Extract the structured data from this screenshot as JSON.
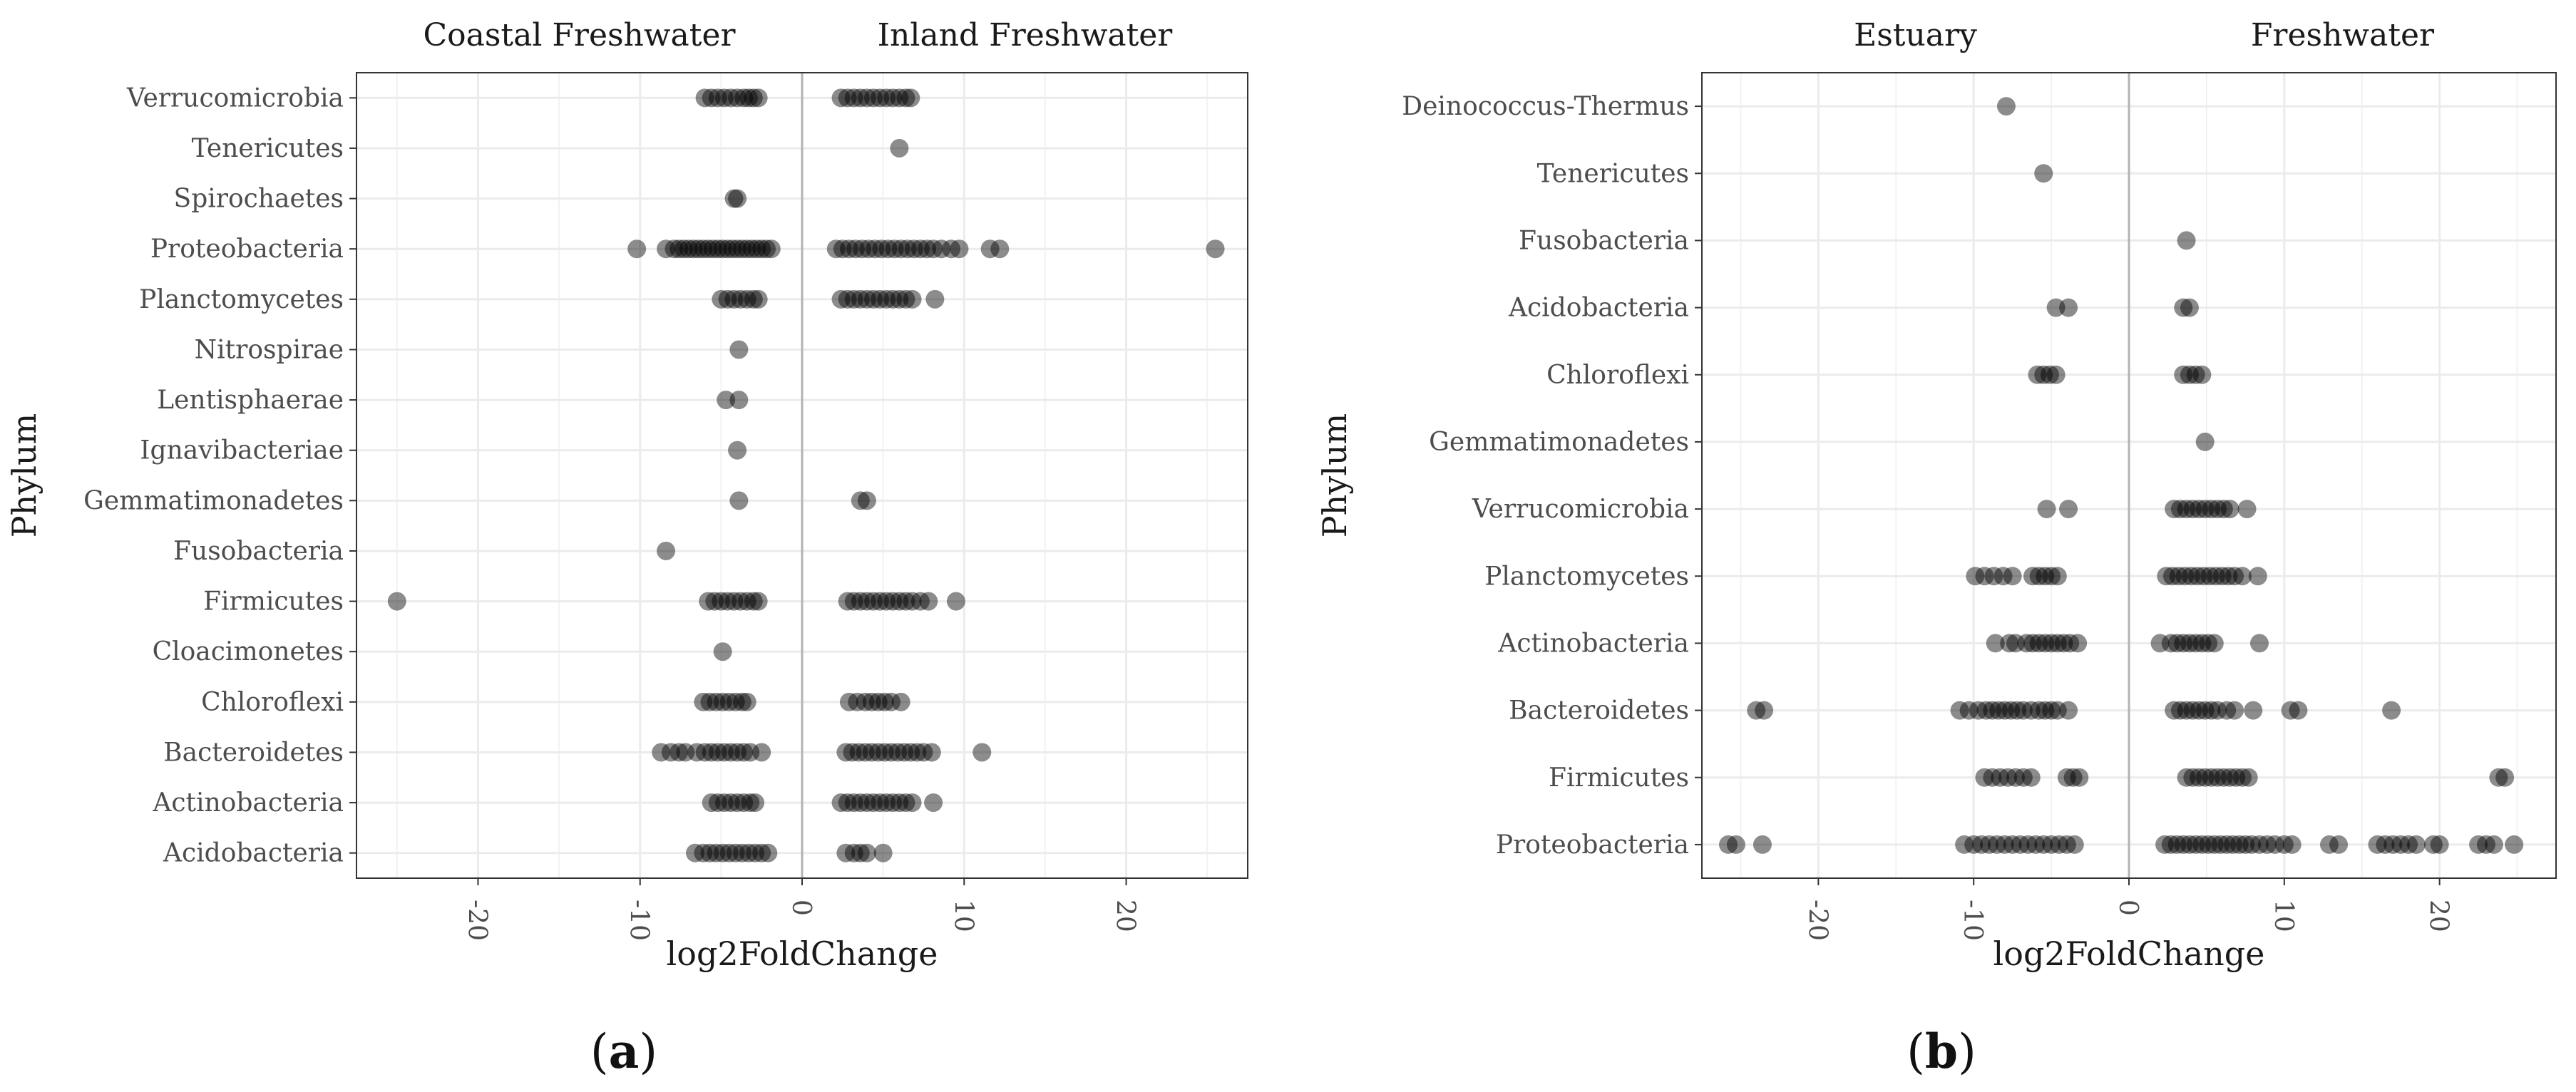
{
  "chart_data": [
    {
      "type": "scatter",
      "panel_label_open": "(",
      "panel_label_letter": "a",
      "panel_label_close": ")",
      "facets": [
        "Coastal Freshwater",
        "Inland Freshwater"
      ],
      "xlabel": "log2FoldChange",
      "ylabel": "Phylum",
      "xlim": [
        -27.5,
        27.5
      ],
      "xticks": [
        -20,
        -10,
        0,
        10,
        20
      ],
      "grid": true,
      "point_color": "#000000",
      "point_alpha": 0.45,
      "categories": [
        "Acidobacteria",
        "Actinobacteria",
        "Bacteroidetes",
        "Chloroflexi",
        "Cloacimonetes",
        "Firmicutes",
        "Fusobacteria",
        "Gemmatimonadetes",
        "Ignavibacteriae",
        "Lentisphaerae",
        "Nitrospirae",
        "Planctomycetes",
        "Proteobacteria",
        "Spirochaetes",
        "Tenericutes",
        "Verrucomicrobia"
      ],
      "series": [
        {
          "name": "Coastal Freshwater",
          "points": [
            {
              "y": "Verrucomicrobia",
              "x": [
                -6,
                -5.6,
                -5.2,
                -4.8,
                -4.4,
                -4,
                -3.6,
                -3.3,
                -3,
                -2.7
              ]
            },
            {
              "y": "Spirochaetes",
              "x": [
                -4.2,
                -4
              ]
            },
            {
              "y": "Proteobacteria",
              "x": [
                -10.2,
                -8.4,
                -7.9,
                -7.6,
                -7.3,
                -7,
                -6.7,
                -6.4,
                -6.1,
                -5.8,
                -5.5,
                -5.2,
                -4.9,
                -4.6,
                -4.3,
                -4,
                -3.7,
                -3.4,
                -3.1,
                -2.8,
                -2.5,
                -2.2,
                -1.9
              ]
            },
            {
              "y": "Planctomycetes",
              "x": [
                -5,
                -4.6,
                -4.2,
                -3.8,
                -3.4,
                -3,
                -2.7
              ]
            },
            {
              "y": "Nitrospirae",
              "x": [
                -3.9
              ]
            },
            {
              "y": "Lentisphaerae",
              "x": [
                -4.7,
                -3.9
              ]
            },
            {
              "y": "Ignavibacteriae",
              "x": [
                -4
              ]
            },
            {
              "y": "Gemmatimonadetes",
              "x": [
                -3.9
              ]
            },
            {
              "y": "Fusobacteria",
              "x": [
                -8.4
              ]
            },
            {
              "y": "Firmicutes",
              "x": [
                -25,
                -5.8,
                -5.4,
                -5,
                -4.6,
                -4.2,
                -3.8,
                -3.4,
                -3,
                -2.7
              ]
            },
            {
              "y": "Cloacimonetes",
              "x": [
                -4.9
              ]
            },
            {
              "y": "Chloroflexi",
              "x": [
                -6.1,
                -5.7,
                -5.3,
                -4.9,
                -4.5,
                -4.1,
                -3.7,
                -3.4
              ]
            },
            {
              "y": "Bacteroidetes",
              "x": [
                -8.7,
                -8.1,
                -7.6,
                -7.2,
                -6.5,
                -6,
                -5.6,
                -5.2,
                -4.8,
                -4.4,
                -4,
                -3.6,
                -3.2,
                -2.5
              ]
            },
            {
              "y": "Actinobacteria",
              "x": [
                -5.6,
                -5.2,
                -4.8,
                -4.4,
                -4,
                -3.6,
                -3.2,
                -2.9
              ]
            },
            {
              "y": "Acidobacteria",
              "x": [
                -6.6,
                -6.1,
                -5.7,
                -5.3,
                -4.9,
                -4.5,
                -4.1,
                -3.7,
                -3.3,
                -2.9,
                -2.5,
                -2.1
              ]
            }
          ]
        },
        {
          "name": "Inland Freshwater",
          "points": [
            {
              "y": "Verrucomicrobia",
              "x": [
                2.4,
                2.8,
                3.2,
                3.6,
                4,
                4.4,
                4.8,
                5.2,
                5.6,
                6,
                6.4,
                6.7
              ]
            },
            {
              "y": "Tenericutes",
              "x": [
                6
              ]
            },
            {
              "y": "Proteobacteria",
              "x": [
                2.1,
                2.5,
                2.9,
                3.3,
                3.7,
                4.1,
                4.5,
                4.9,
                5.3,
                5.7,
                6.1,
                6.5,
                6.9,
                7.3,
                7.7,
                8.1,
                8.6,
                9.2,
                9.7,
                11.6,
                12.2,
                25.5
              ]
            },
            {
              "y": "Planctomycetes",
              "x": [
                2.4,
                2.8,
                3.2,
                3.6,
                4,
                4.4,
                4.8,
                5.2,
                5.6,
                6,
                6.4,
                6.8,
                8.2
              ]
            },
            {
              "y": "Gemmatimonadetes",
              "x": [
                3.6,
                4
              ]
            },
            {
              "y": "Firmicutes",
              "x": [
                2.8,
                3.2,
                3.6,
                4,
                4.4,
                4.8,
                5.2,
                5.6,
                6,
                6.4,
                6.8,
                7.3,
                7.8,
                9.5
              ]
            },
            {
              "y": "Chloroflexi",
              "x": [
                2.9,
                3.4,
                3.9,
                4.3,
                4.7,
                5.1,
                5.5,
                6.1
              ]
            },
            {
              "y": "Bacteroidetes",
              "x": [
                2.7,
                3.1,
                3.5,
                3.9,
                4.3,
                4.7,
                5.1,
                5.5,
                5.9,
                6.3,
                6.7,
                7.1,
                7.5,
                8,
                11.1
              ]
            },
            {
              "y": "Actinobacteria",
              "x": [
                2.4,
                2.8,
                3.2,
                3.6,
                4,
                4.4,
                4.8,
                5.2,
                5.6,
                6,
                6.4,
                6.8,
                8.1
              ]
            },
            {
              "y": "Acidobacteria",
              "x": [
                2.7,
                3.2,
                3.6,
                4,
                5
              ]
            }
          ]
        }
      ]
    },
    {
      "type": "scatter",
      "panel_label_open": "(",
      "panel_label_letter": "b",
      "panel_label_close": ")",
      "facets": [
        "Estuary",
        "Freshwater"
      ],
      "xlabel": "log2FoldChange",
      "ylabel": "Phylum",
      "xlim": [
        -27.5,
        27.5
      ],
      "xticks": [
        -20,
        -10,
        0,
        10,
        20
      ],
      "grid": true,
      "point_color": "#000000",
      "point_alpha": 0.45,
      "categories": [
        "Proteobacteria",
        "Firmicutes",
        "Bacteroidetes",
        "Actinobacteria",
        "Planctomycetes",
        "Verrucomicrobia",
        "Gemmatimonadetes",
        "Chloroflexi",
        "Acidobacteria",
        "Fusobacteria",
        "Tenericutes",
        "Deinococcus-Thermus"
      ],
      "series": [
        {
          "name": "Estuary",
          "points": [
            {
              "y": "Deinococcus-Thermus",
              "x": [
                -7.9
              ]
            },
            {
              "y": "Tenericutes",
              "x": [
                -5.5
              ]
            },
            {
              "y": "Acidobacteria",
              "x": [
                -4.7,
                -3.9
              ]
            },
            {
              "y": "Chloroflexi",
              "x": [
                -5.9,
                -5.5,
                -5.1,
                -4.7
              ]
            },
            {
              "y": "Verrucomicrobia",
              "x": [
                -5.3,
                -3.9
              ]
            },
            {
              "y": "Planctomycetes",
              "x": [
                -9.9,
                -9.3,
                -8.7,
                -8.1,
                -7.5,
                -6.2,
                -5.8,
                -5.4,
                -5,
                -4.6
              ]
            },
            {
              "y": "Actinobacteria",
              "x": [
                -8.6,
                -7.7,
                -7.3,
                -6.6,
                -6.2,
                -5.8,
                -5.4,
                -5,
                -4.6,
                -4.2,
                -3.8,
                -3.3
              ]
            },
            {
              "y": "Bacteroidetes",
              "x": [
                -24,
                -23.5,
                -10.9,
                -10.3,
                -9.7,
                -9.2,
                -8.8,
                -8.4,
                -8,
                -7.6,
                -7.2,
                -6.8,
                -6.3,
                -5.8,
                -5.4,
                -5,
                -4.6,
                -3.9
              ]
            },
            {
              "y": "Firmicutes",
              "x": [
                -9.3,
                -8.8,
                -8.3,
                -7.8,
                -7.3,
                -6.8,
                -6.3,
                -4,
                -3.6,
                -3.2
              ]
            },
            {
              "y": "Proteobacteria",
              "x": [
                -25.8,
                -25.3,
                -23.6,
                -10.6,
                -10,
                -9.5,
                -9,
                -8.5,
                -8,
                -7.5,
                -7,
                -6.5,
                -6,
                -5.5,
                -5,
                -4.5,
                -4,
                -3.5
              ]
            }
          ]
        },
        {
          "name": "Freshwater",
          "points": [
            {
              "y": "Fusobacteria",
              "x": [
                3.7
              ]
            },
            {
              "y": "Acidobacteria",
              "x": [
                3.5,
                3.9
              ]
            },
            {
              "y": "Chloroflexi",
              "x": [
                3.5,
                3.9,
                4.3,
                4.7
              ]
            },
            {
              "y": "Gemmatimonadetes",
              "x": [
                4.9
              ]
            },
            {
              "y": "Verrucomicrobia",
              "x": [
                2.9,
                3.3,
                3.7,
                4.1,
                4.5,
                4.9,
                5.3,
                5.7,
                6.1,
                6.5,
                7.6
              ]
            },
            {
              "y": "Planctomycetes",
              "x": [
                2.4,
                2.8,
                3.2,
                3.6,
                4,
                4.4,
                4.8,
                5.2,
                5.6,
                6,
                6.4,
                6.8,
                7.3,
                8.3
              ]
            },
            {
              "y": "Actinobacteria",
              "x": [
                2,
                2.7,
                3.1,
                3.5,
                3.9,
                4.3,
                4.7,
                5.1,
                5.5,
                8.4
              ]
            },
            {
              "y": "Bacteroidetes",
              "x": [
                2.9,
                3.3,
                3.7,
                4.1,
                4.5,
                4.9,
                5.3,
                5.7,
                6.3,
                6.8,
                8,
                10.4,
                10.9,
                16.9
              ]
            },
            {
              "y": "Firmicutes",
              "x": [
                3.7,
                4.1,
                4.5,
                4.9,
                5.3,
                5.7,
                6.1,
                6.5,
                6.9,
                7.3,
                7.7,
                23.8,
                24.2
              ]
            },
            {
              "y": "Proteobacteria",
              "x": [
                2.3,
                2.7,
                3.1,
                3.5,
                3.9,
                4.3,
                4.7,
                5.1,
                5.5,
                5.9,
                6.3,
                6.7,
                7.1,
                7.5,
                7.9,
                8.4,
                8.9,
                9.4,
                10,
                10.5,
                12.9,
                13.5,
                16,
                16.5,
                17,
                17.5,
                18,
                18.5,
                19.6,
                20,
                22.5,
                23,
                23.5,
                24.8
              ]
            }
          ]
        }
      ]
    }
  ]
}
